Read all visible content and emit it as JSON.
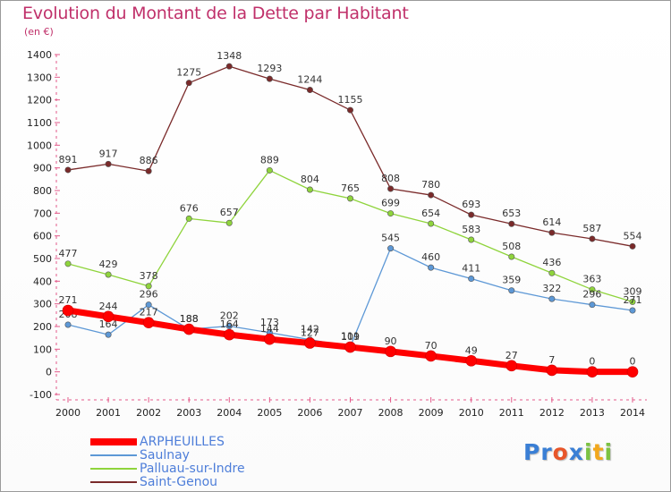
{
  "title": "Evolution du Montant de la Dette par Habitant",
  "subtitle": "(en €)",
  "logo": {
    "letters": [
      "P",
      "r",
      "o",
      "x",
      "i",
      "t",
      "i"
    ],
    "colors": [
      "#3a7fd5",
      "#3a7fd5",
      "#e8562a",
      "#3a7fd5",
      "#7cc242",
      "#f2a81d",
      "#7cc242"
    ]
  },
  "chart_data": {
    "type": "line",
    "x": [
      2000,
      2001,
      2002,
      2003,
      2004,
      2005,
      2006,
      2007,
      2008,
      2009,
      2010,
      2011,
      2012,
      2013,
      2014
    ],
    "ylim": [
      -100,
      1400
    ],
    "yticks": [
      -100,
      0,
      100,
      200,
      300,
      400,
      500,
      600,
      700,
      800,
      900,
      1000,
      1100,
      1200,
      1300,
      1400
    ],
    "grid": false,
    "legend_position": "bottom-left",
    "series": [
      {
        "name": "Saint-Genou",
        "color": "#7a2a2a",
        "values": [
          891,
          917,
          886,
          1275,
          1348,
          1293,
          1244,
          1155,
          808,
          780,
          693,
          653,
          614,
          587,
          554
        ]
      },
      {
        "name": "Palluau-sur-Indre",
        "color": "#8fd43c",
        "values": [
          477,
          429,
          378,
          676,
          657,
          889,
          804,
          765,
          699,
          654,
          583,
          508,
          436,
          363,
          309
        ]
      },
      {
        "name": "Saulnay",
        "color": "#5d98d6",
        "values": [
          208,
          164,
          296,
          188,
          202,
          173,
          142,
          111,
          545,
          460,
          411,
          359,
          322,
          296,
          271
        ]
      },
      {
        "name": "ARPHEUILLES",
        "color": "#ff0000",
        "values": [
          271,
          244,
          217,
          188,
          164,
          144,
          127,
          109,
          90,
          70,
          49,
          27,
          7,
          0,
          0
        ]
      }
    ],
    "legend": [
      "ARPHEUILLES",
      "Saulnay",
      "Palluau-sur-Indre",
      "Saint-Genou"
    ]
  }
}
